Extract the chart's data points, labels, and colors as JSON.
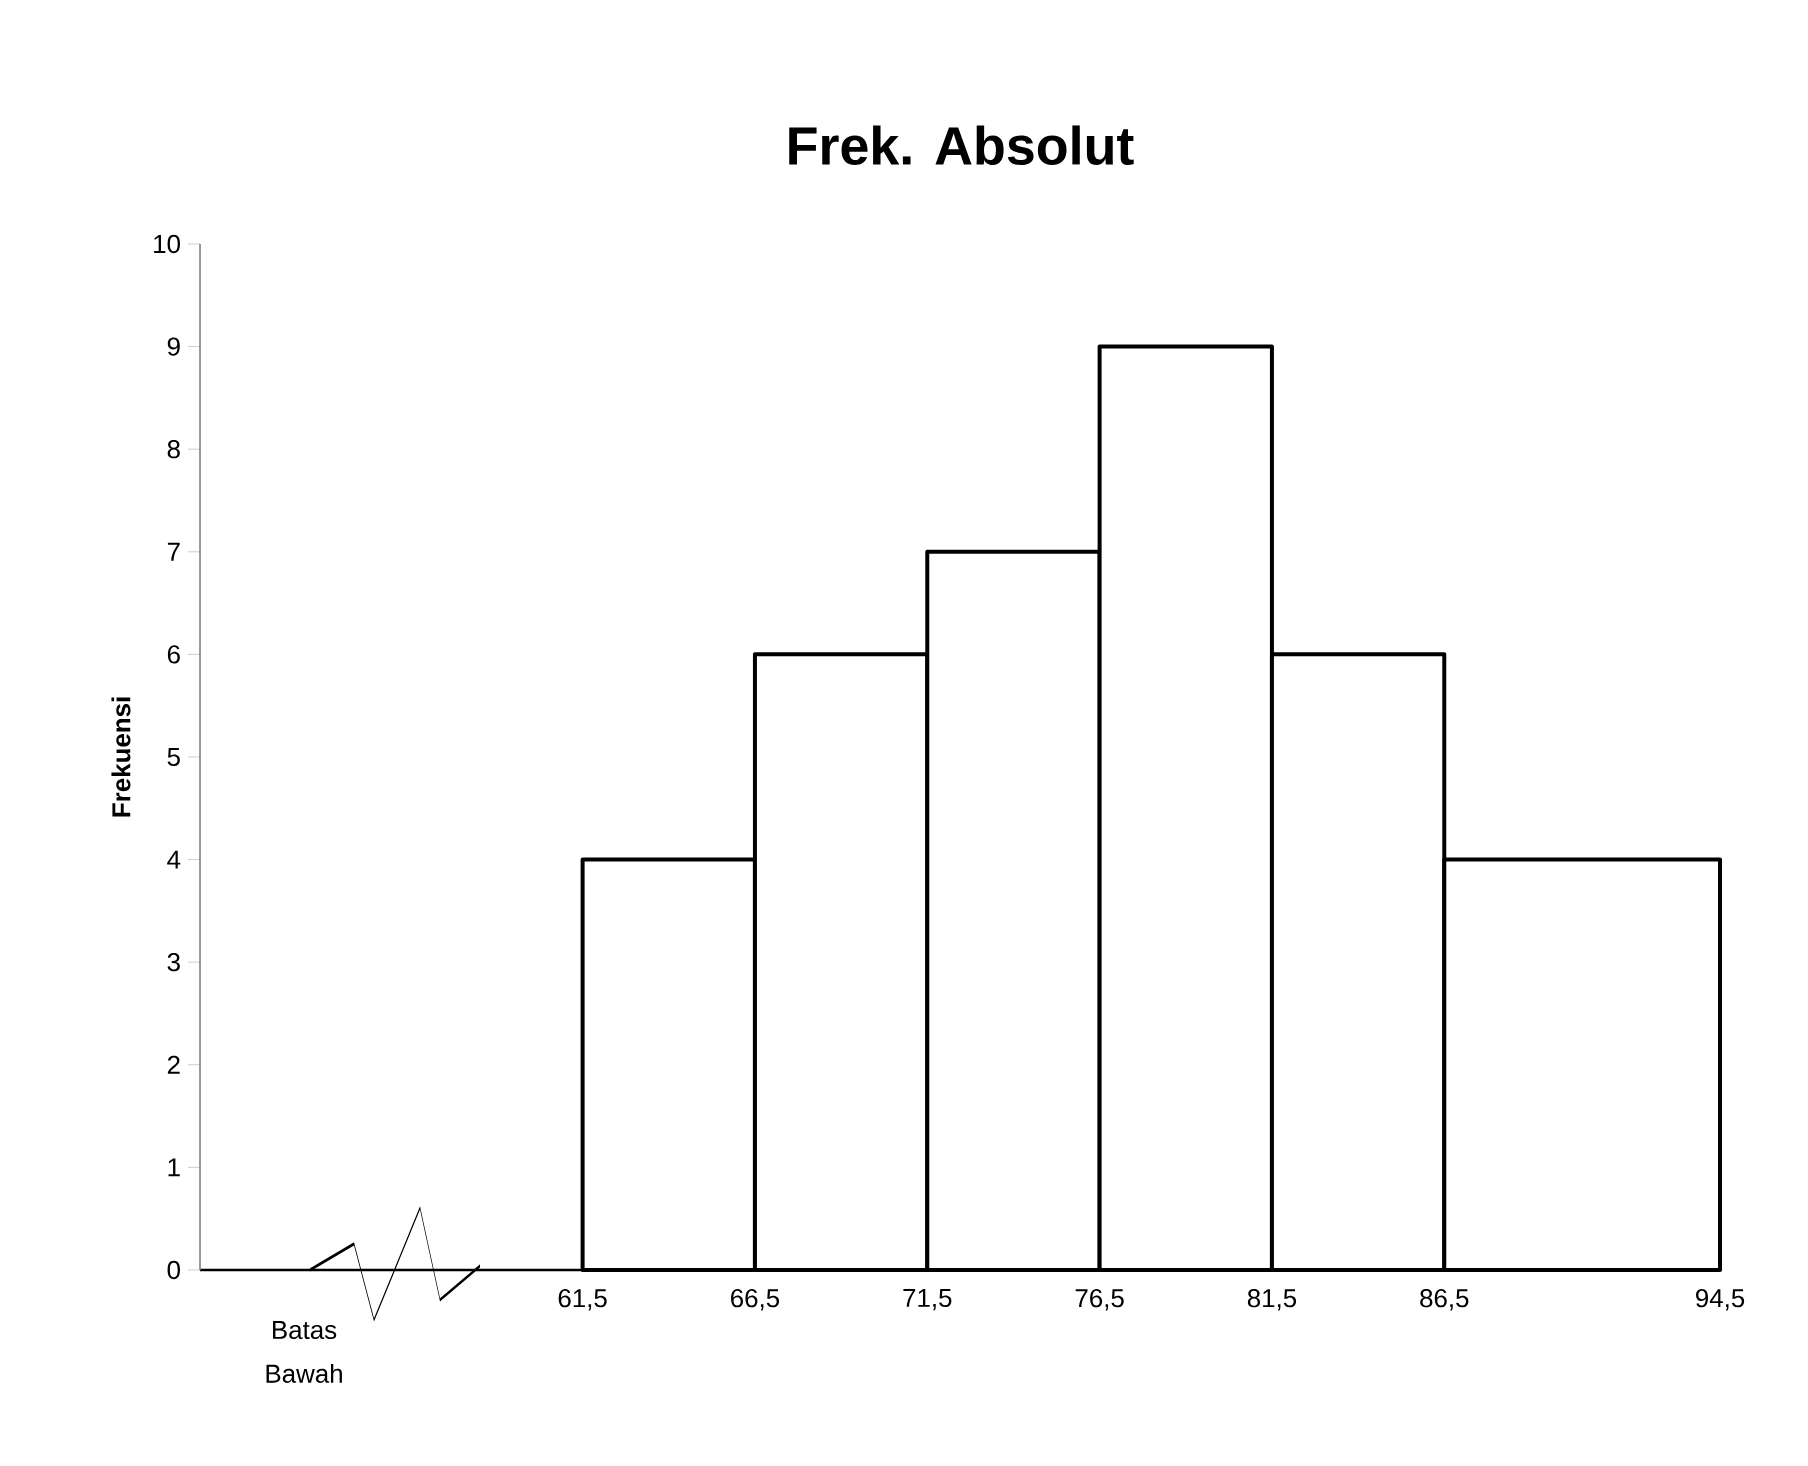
{
  "chart_data": {
    "type": "histogram",
    "title": "Frek. Absolut",
    "ylabel": "Frekuensi",
    "bins": [
      61.5,
      66.5,
      71.5,
      76.5,
      81.5,
      86.5,
      94.5
    ],
    "values": [
      4,
      6,
      7,
      9,
      6,
      4
    ],
    "color": "#ffffff",
    "ylim": [
      0,
      10
    ],
    "yticks": [
      0,
      1,
      2,
      3,
      4,
      5,
      6,
      7,
      8,
      9,
      10
    ],
    "xlim": [
      50.4,
      94.5
    ],
    "xticks": [
      {
        "value": 61.5,
        "label": "61,5"
      },
      {
        "value": 66.5,
        "label": "66,5"
      },
      {
        "value": 71.5,
        "label": "71,5"
      },
      {
        "value": 76.5,
        "label": "76,5"
      },
      {
        "value": 81.5,
        "label": "81,5"
      },
      {
        "value": 86.5,
        "label": "86,5"
      },
      {
        "value": 94.5,
        "label": "94,5"
      }
    ],
    "annotations": [
      "Batas Bawah"
    ]
  }
}
